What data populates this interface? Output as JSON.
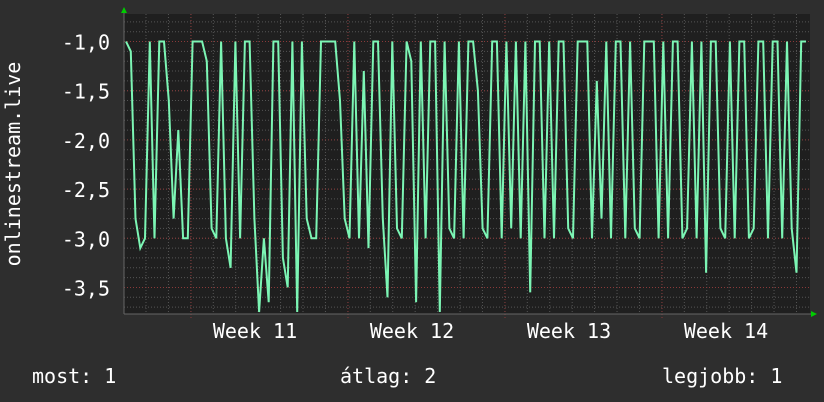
{
  "chart_data": {
    "type": "line",
    "ylabel": "onlinestream.live",
    "ylim": [
      -3.77,
      -0.72
    ],
    "yticks": [
      "-1,0",
      "-1,5",
      "-2,0",
      "-2,5",
      "-3,0",
      "-3,5"
    ],
    "ytick_values": [
      -1.0,
      -1.5,
      -2.0,
      -2.5,
      -3.0,
      -3.5
    ],
    "xticks": [
      "Week 11",
      "Week 12",
      "Week 13",
      "Week 14"
    ],
    "grid": true,
    "colors": {
      "line": "#7cf5b4",
      "background": "#2e2e2e",
      "plot": "#1f1f1f",
      "major_grid": "#8a3a3a",
      "minor_grid": "#555555",
      "arrow": "#00cc00"
    },
    "values": [
      -1.0,
      -1.1,
      -2.8,
      -3.1,
      -3.0,
      -1.0,
      -3.0,
      -1.0,
      -1.0,
      -1.6,
      -2.8,
      -1.9,
      -3.0,
      -3.0,
      -1.0,
      -1.0,
      -1.0,
      -1.2,
      -2.9,
      -3.0,
      -1.0,
      -3.0,
      -3.3,
      -1.0,
      -3.0,
      -1.0,
      -1.0,
      -2.8,
      -3.75,
      -3.0,
      -3.65,
      -1.0,
      -1.0,
      -3.2,
      -3.5,
      -1.0,
      -3.75,
      -1.0,
      -2.8,
      -3.0,
      -3.0,
      -1.0,
      -1.0,
      -1.0,
      -1.0,
      -1.6,
      -2.8,
      -3.0,
      -1.0,
      -3.0,
      -1.3,
      -3.1,
      -1.0,
      -1.0,
      -2.8,
      -3.6,
      -1.0,
      -2.9,
      -3.0,
      -1.0,
      -1.2,
      -3.65,
      -1.0,
      -3.0,
      -1.0,
      -1.0,
      -3.75,
      -1.0,
      -2.9,
      -3.0,
      -1.0,
      -3.0,
      -1.0,
      -1.0,
      -1.5,
      -2.9,
      -3.0,
      -1.0,
      -1.0,
      -3.0,
      -1.0,
      -2.9,
      -1.0,
      -3.0,
      -1.0,
      -3.55,
      -1.0,
      -1.0,
      -3.0,
      -1.0,
      -3.0,
      -1.0,
      -1.0,
      -2.9,
      -3.0,
      -1.0,
      -1.0,
      -1.0,
      -3.0,
      -1.4,
      -2.8,
      -1.0,
      -3.0,
      -1.0,
      -1.0,
      -3.0,
      -1.0,
      -2.9,
      -3.0,
      -1.0,
      -1.0,
      -1.0,
      -3.0,
      -1.0,
      -3.0,
      -1.0,
      -1.0,
      -3.0,
      -2.9,
      -1.0,
      -3.0,
      -1.0,
      -3.35,
      -1.0,
      -1.0,
      -2.9,
      -3.0,
      -1.0,
      -3.0,
      -1.0,
      -1.0,
      -3.0,
      -2.9,
      -1.0,
      -1.0,
      -3.0,
      -1.0,
      -1.0,
      -3.0,
      -1.0,
      -2.9,
      -3.35,
      -1.0,
      -1.0
    ]
  },
  "legend": {
    "current": "most: 1",
    "average": "átlag: 2",
    "max": "legjobb: 1"
  }
}
